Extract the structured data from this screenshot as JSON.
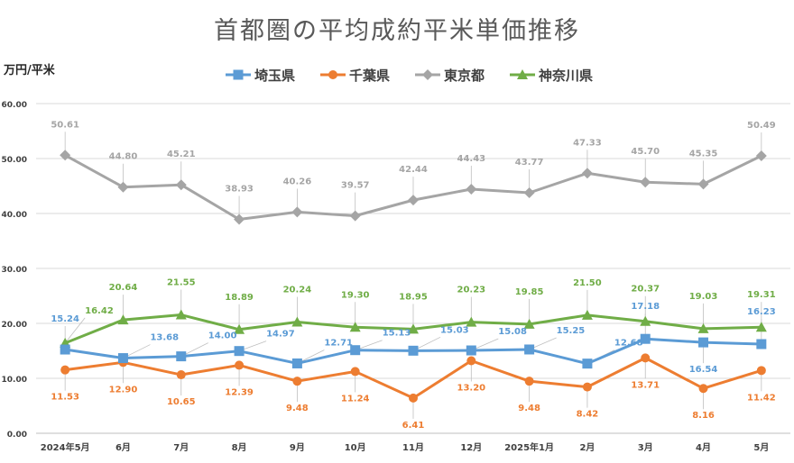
{
  "chart_data": {
    "type": "line",
    "title": "首都圏の平均成約平米単価推移",
    "ylabel": "万円/平米",
    "xlabel": "",
    "ylim": [
      0,
      60
    ],
    "yticks": [
      "0.00",
      "10.00",
      "20.00",
      "30.00",
      "40.00",
      "50.00",
      "60.00"
    ],
    "grid": true,
    "legend_position": "top",
    "categories": [
      "2024年5月",
      "6月",
      "7月",
      "8月",
      "9月",
      "10月",
      "11月",
      "12月",
      "2025年1月",
      "2月",
      "3月",
      "4月",
      "5月"
    ],
    "series": [
      {
        "name": "埼玉県",
        "color": "#5b9bd5",
        "marker": "square",
        "values": [
          15.24,
          13.68,
          14.0,
          14.97,
          12.71,
          15.13,
          15.03,
          15.08,
          15.25,
          12.68,
          17.18,
          16.54,
          16.23
        ],
        "labels": [
          "15.24",
          "13.68",
          "14.00",
          "14.97",
          "12.71",
          "15.13",
          "15.03",
          "15.08",
          "15.25",
          "12.68",
          "17.18",
          "16.54",
          "16.23"
        ]
      },
      {
        "name": "千葉県",
        "color": "#ed7d31",
        "marker": "circle",
        "values": [
          11.53,
          12.9,
          10.65,
          12.39,
          9.48,
          11.24,
          6.41,
          13.2,
          9.48,
          8.42,
          13.71,
          8.16,
          11.42
        ],
        "labels": [
          "11.53",
          "12.90",
          "10.65",
          "12.39",
          "9.48",
          "11.24",
          "6.41",
          "13.20",
          "9.48",
          "8.42",
          "13.71",
          "8.16",
          "11.42"
        ]
      },
      {
        "name": "東京都",
        "color": "#a5a5a5",
        "marker": "diamond",
        "values": [
          50.61,
          44.8,
          45.21,
          38.93,
          40.26,
          39.57,
          42.44,
          44.43,
          43.77,
          47.33,
          45.7,
          45.35,
          50.49
        ],
        "labels": [
          "50.61",
          "44.80",
          "45.21",
          "38.93",
          "40.26",
          "39.57",
          "42.44",
          "44.43",
          "43.77",
          "47.33",
          "45.70",
          "45.35",
          "50.49"
        ]
      },
      {
        "name": "神奈川県",
        "color": "#70ad47",
        "marker": "triangle",
        "values": [
          16.42,
          20.64,
          21.55,
          18.89,
          20.24,
          19.3,
          18.95,
          20.23,
          19.85,
          21.5,
          20.37,
          19.03,
          19.31
        ],
        "labels": [
          "16.42",
          "20.64",
          "21.55",
          "18.89",
          "20.24",
          "19.30",
          "18.95",
          "20.23",
          "19.85",
          "21.50",
          "20.37",
          "19.03",
          "19.31"
        ]
      }
    ]
  }
}
